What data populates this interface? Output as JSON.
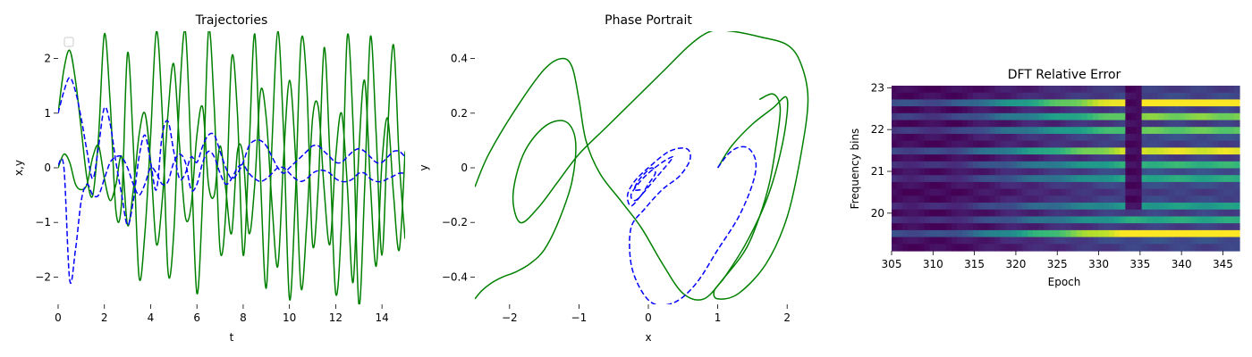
{
  "chart_data": [
    {
      "type": "line",
      "title": "Trajectories",
      "xlabel": "t",
      "ylabel": "x,y",
      "xlim": [
        0,
        15
      ],
      "ylim": [
        -2.5,
        2.5
      ],
      "xticks": [
        0,
        2,
        4,
        6,
        8,
        10,
        12,
        14
      ],
      "yticks": [
        -2,
        -1,
        0,
        1,
        2
      ],
      "legend": "top-left, empty",
      "series": [
        {
          "style": "solid",
          "color": "#008000",
          "x": [
            0,
            0.25,
            0.5,
            0.75,
            1.0,
            1.25,
            1.5,
            1.75,
            2.0,
            2.25,
            2.5,
            2.75,
            3.0,
            3.25,
            3.5,
            3.75,
            4.0,
            4.25,
            4.5,
            4.75,
            5.0,
            5.25,
            5.5,
            5.75,
            6.0,
            6.25,
            6.5,
            6.75,
            7.0,
            7.25,
            7.5,
            7.75,
            8.0,
            8.25,
            8.5,
            8.75,
            9.0,
            9.25,
            9.5,
            9.75,
            10.0,
            10.25,
            10.5,
            10.75,
            11.0,
            11.25,
            11.5,
            11.75,
            12.0,
            12.25,
            12.5,
            12.75,
            13.0,
            13.25,
            13.5,
            13.75,
            14.0,
            14.25,
            14.5,
            14.75,
            15.0
          ],
          "y": [
            1.0,
            1.8,
            2.15,
            1.6,
            0.7,
            -0.2,
            -0.5,
            0.6,
            2.45,
            1.2,
            -0.8,
            -0.6,
            2.1,
            0.4,
            -2.0,
            -1.2,
            0.6,
            2.5,
            1.0,
            -1.9,
            -1.2,
            1.3,
            2.5,
            0.2,
            -2.3,
            -0.5,
            2.5,
            1.1,
            -1.5,
            -0.8,
            2.0,
            1.0,
            -1.6,
            0.3,
            2.45,
            -0.2,
            -2.2,
            0.5,
            2.5,
            0.6,
            -2.4,
            -0.6,
            2.3,
            1.5,
            -1.4,
            -0.3,
            2.2,
            0.2,
            -2.3,
            -1.0,
            2.4,
            0.8,
            -2.5,
            -0.4,
            2.4,
            0.6,
            -1.6,
            0.7,
            2.25,
            0.1,
            -1.3
          ]
        },
        {
          "style": "solid",
          "color": "#008000",
          "x": [
            0,
            0.25,
            0.5,
            0.75,
            1.0,
            1.25,
            1.5,
            1.75,
            2.0,
            2.25,
            2.5,
            2.75,
            3.0,
            3.25,
            3.5,
            3.75,
            4.0,
            4.25,
            4.5,
            4.75,
            5.0,
            5.25,
            5.5,
            5.75,
            6.0,
            6.25,
            6.5,
            6.75,
            7.0,
            7.25,
            7.5,
            7.75,
            8.0,
            8.25,
            8.5,
            8.75,
            9.0,
            9.25,
            9.5,
            9.75,
            10.0,
            10.25,
            10.5,
            10.75,
            11.0,
            11.25,
            11.5,
            11.75,
            12.0,
            12.25,
            12.5,
            12.75,
            13.0,
            13.25,
            13.5,
            13.75,
            14.0,
            14.25,
            14.5,
            14.75,
            15.0
          ],
          "y": [
            0.0,
            0.25,
            0.1,
            -0.3,
            -0.4,
            -0.3,
            0.2,
            0.4,
            -0.2,
            -0.6,
            -0.3,
            0.2,
            -1.05,
            -0.4,
            0.6,
            1.0,
            0.1,
            -1.4,
            -0.6,
            1.0,
            1.9,
            0.4,
            -0.9,
            -0.7,
            0.6,
            1.1,
            -0.3,
            -0.5,
            0.4,
            -0.4,
            -1.2,
            0.3,
            0.2,
            -1.2,
            -0.3,
            1.4,
            0.9,
            -0.7,
            -1.8,
            0.2,
            1.6,
            0.3,
            -2.2,
            -1.0,
            0.9,
            1.1,
            -0.4,
            -1.4,
            0.2,
            1.0,
            -0.3,
            -2.1,
            0.3,
            1.6,
            -0.3,
            -1.8,
            0.1,
            0.9,
            -0.5,
            -1.5,
            0.3
          ]
        },
        {
          "style": "dashed",
          "color": "#0000ff",
          "x": [
            0,
            0.25,
            0.5,
            0.75,
            1.0,
            1.25,
            1.5,
            1.75,
            2.0,
            2.25,
            2.5,
            2.75,
            3.0,
            3.25,
            3.5,
            3.75,
            4.0,
            4.25,
            4.5,
            4.75,
            5.0,
            5.25,
            5.5,
            5.75,
            6.0,
            6.25,
            6.5,
            6.75,
            7.0,
            7.25,
            7.5,
            7.75,
            8.0,
            8.25,
            8.5,
            8.75,
            9.0,
            9.25,
            9.5,
            9.75,
            10.0,
            10.25,
            10.5,
            10.75,
            11.0,
            11.25,
            11.5,
            11.75,
            12.0,
            12.25,
            12.5,
            12.75,
            13.0,
            13.25,
            13.5,
            13.75,
            14.0,
            14.25,
            14.5,
            14.75,
            15.0
          ],
          "y": [
            1.0,
            1.4,
            1.65,
            1.4,
            0.9,
            0.3,
            -0.2,
            0.4,
            1.1,
            0.8,
            0.1,
            -0.5,
            -1.05,
            -0.6,
            0.2,
            0.6,
            0.1,
            -0.4,
            0.6,
            0.85,
            0.3,
            -0.2,
            -0.1,
            0.2,
            0.1,
            0.4,
            0.6,
            0.6,
            0.3,
            0.0,
            -0.2,
            -0.1,
            0.1,
            0.4,
            0.5,
            0.5,
            0.4,
            0.2,
            0.0,
            -0.1,
            0.0,
            0.1,
            0.2,
            0.3,
            0.4,
            0.4,
            0.3,
            0.2,
            0.1,
            0.1,
            0.2,
            0.3,
            0.35,
            0.3,
            0.2,
            0.1,
            0.1,
            0.2,
            0.3,
            0.3,
            0.2
          ]
        },
        {
          "style": "dashed",
          "color": "#0000ff",
          "x": [
            0,
            0.25,
            0.5,
            0.75,
            1.0,
            1.25,
            1.5,
            1.75,
            2.0,
            2.25,
            2.5,
            2.75,
            3.0,
            3.25,
            3.5,
            3.75,
            4.0,
            4.25,
            4.5,
            4.75,
            5.0,
            5.25,
            5.5,
            5.75,
            6.0,
            6.25,
            6.5,
            6.75,
            7.0,
            7.25,
            7.5,
            7.75,
            8.0,
            8.25,
            8.5,
            8.75,
            9.0,
            9.25,
            9.5,
            9.75,
            10.0,
            10.25,
            10.5,
            10.75,
            11.0,
            11.25,
            11.5,
            11.75,
            12.0,
            12.25,
            12.5,
            12.75,
            13.0,
            13.25,
            13.5,
            13.75,
            14.0,
            14.25,
            14.5,
            14.75,
            15.0
          ],
          "y": [
            0.05,
            0.0,
            -2.05,
            -1.5,
            -0.6,
            -0.3,
            -0.5,
            -0.5,
            -0.2,
            0.1,
            0.2,
            0.2,
            0.0,
            -0.3,
            -0.5,
            -0.3,
            0.0,
            -0.1,
            -0.3,
            -0.25,
            0.1,
            0.25,
            0.1,
            -0.4,
            -0.3,
            0.1,
            0.3,
            0.2,
            -0.1,
            -0.3,
            -0.2,
            0.0,
            0.05,
            -0.1,
            -0.2,
            -0.25,
            -0.2,
            -0.1,
            0.0,
            0.0,
            -0.1,
            -0.2,
            -0.25,
            -0.2,
            -0.1,
            -0.05,
            -0.05,
            -0.1,
            -0.2,
            -0.25,
            -0.25,
            -0.2,
            -0.1,
            -0.1,
            -0.2,
            -0.25,
            -0.25,
            -0.2,
            -0.15,
            -0.1,
            -0.1
          ]
        }
      ]
    },
    {
      "type": "line",
      "title": "Phase Portrait",
      "xlabel": "x",
      "ylabel": "y",
      "xlim": [
        -2.5,
        2.5
      ],
      "ylim": [
        -0.5,
        0.5
      ],
      "xticks": [
        -2,
        -1,
        0,
        1,
        2
      ],
      "yticks": [
        -0.4,
        -0.2,
        0.0,
        0.2,
        0.4
      ],
      "series": [
        {
          "style": "solid",
          "color": "#008000",
          "x": [
            1.0,
            1.2,
            1.5,
            1.8,
            1.98,
            2.0,
            1.9,
            1.7,
            1.4,
            1.1,
            0.95,
            1.0,
            1.3,
            1.7,
            2.0,
            2.2,
            2.3,
            2.2,
            2.0,
            1.6,
            1.2,
            0.9,
            0.6,
            0.2,
            -0.2,
            -0.6,
            -1.0,
            -1.3,
            -1.6,
            -1.85,
            -1.95,
            -1.8,
            -1.5,
            -1.2,
            -1.05,
            -1.1,
            -1.3,
            -1.5,
            -1.7,
            -1.9,
            -2.1,
            -2.25,
            -2.4,
            -2.5
          ],
          "y": [
            0.0,
            0.08,
            0.16,
            0.22,
            0.26,
            0.2,
            0.05,
            -0.12,
            -0.28,
            -0.4,
            -0.45,
            -0.48,
            -0.46,
            -0.35,
            -0.18,
            0.05,
            0.25,
            0.38,
            0.45,
            0.48,
            0.5,
            0.5,
            0.45,
            0.35,
            0.25,
            0.15,
            0.05,
            -0.05,
            -0.15,
            -0.2,
            -0.1,
            0.05,
            0.15,
            0.17,
            0.1,
            -0.05,
            -0.2,
            -0.3,
            -0.35,
            -0.38,
            -0.4,
            -0.42,
            -0.45,
            -0.48
          ]
        },
        {
          "style": "solid",
          "color": "#008000",
          "x": [
            -2.5,
            -2.3,
            -1.9,
            -1.5,
            -1.25,
            -1.1,
            -1.0,
            -0.9,
            -0.7,
            -0.4,
            -0.1,
            0.2,
            0.5,
            0.8,
            1.1,
            1.4,
            1.6,
            1.75,
            1.85,
            1.9,
            1.8,
            1.6
          ],
          "y": [
            -0.07,
            0.05,
            0.22,
            0.36,
            0.4,
            0.37,
            0.25,
            0.1,
            -0.02,
            -0.12,
            -0.22,
            -0.35,
            -0.46,
            -0.48,
            -0.4,
            -0.3,
            -0.18,
            -0.05,
            0.1,
            0.22,
            0.27,
            0.25
          ]
        },
        {
          "style": "dashed",
          "color": "#0000ff",
          "x": [
            1.0,
            1.15,
            1.3,
            1.45,
            1.55,
            1.5,
            1.3,
            1.0,
            0.7,
            0.4,
            0.1,
            -0.1,
            -0.25,
            -0.25,
            -0.05,
            0.2,
            0.45,
            0.6,
            0.55,
            0.3,
            0.0,
            -0.2,
            -0.3,
            -0.25,
            -0.1,
            0.1,
            0.3,
            0.35,
            0.2,
            0.0,
            -0.15,
            -0.25,
            -0.2,
            -0.1,
            0.0,
            0.1,
            0.05,
            -0.05,
            -0.15,
            -0.2,
            -0.1
          ],
          "y": [
            0.0,
            0.05,
            0.075,
            0.07,
            0.02,
            -0.06,
            -0.18,
            -0.3,
            -0.42,
            -0.49,
            -0.5,
            -0.45,
            -0.35,
            -0.22,
            -0.15,
            -0.08,
            -0.03,
            0.03,
            0.07,
            0.06,
            0.0,
            -0.05,
            -0.1,
            -0.14,
            -0.1,
            -0.04,
            0.02,
            0.04,
            0.02,
            -0.02,
            -0.06,
            -0.1,
            -0.12,
            -0.1,
            -0.06,
            -0.02,
            0.0,
            -0.02,
            -0.05,
            -0.08,
            -0.08
          ]
        }
      ]
    },
    {
      "type": "heatmap",
      "title": "DFT Relative Error",
      "xlabel": "Epoch",
      "ylabel": "Frequency bins",
      "xlim": [
        305,
        347
      ],
      "ylim": [
        19.1,
        23.05
      ],
      "xticks": [
        305,
        310,
        315,
        320,
        325,
        330,
        335,
        340,
        345
      ],
      "yticks": [
        20,
        21,
        22,
        23
      ],
      "colormap": "viridis",
      "rows": 24,
      "bright_rows": [
        {
          "row_from_top": 2,
          "strength": 0.95
        },
        {
          "row_from_top": 4,
          "strength": 0.7
        },
        {
          "row_from_top": 6,
          "strength": 0.65
        },
        {
          "row_from_top": 9,
          "strength": 0.85
        },
        {
          "row_from_top": 11,
          "strength": 0.55
        },
        {
          "row_from_top": 13,
          "strength": 0.5
        },
        {
          "row_from_top": 17,
          "strength": 0.45
        },
        {
          "row_from_top": 19,
          "strength": 0.5
        },
        {
          "row_from_top": 21,
          "strength": 0.95
        }
      ],
      "dark_band_epochs": [
        333.2,
        335.2
      ]
    }
  ]
}
